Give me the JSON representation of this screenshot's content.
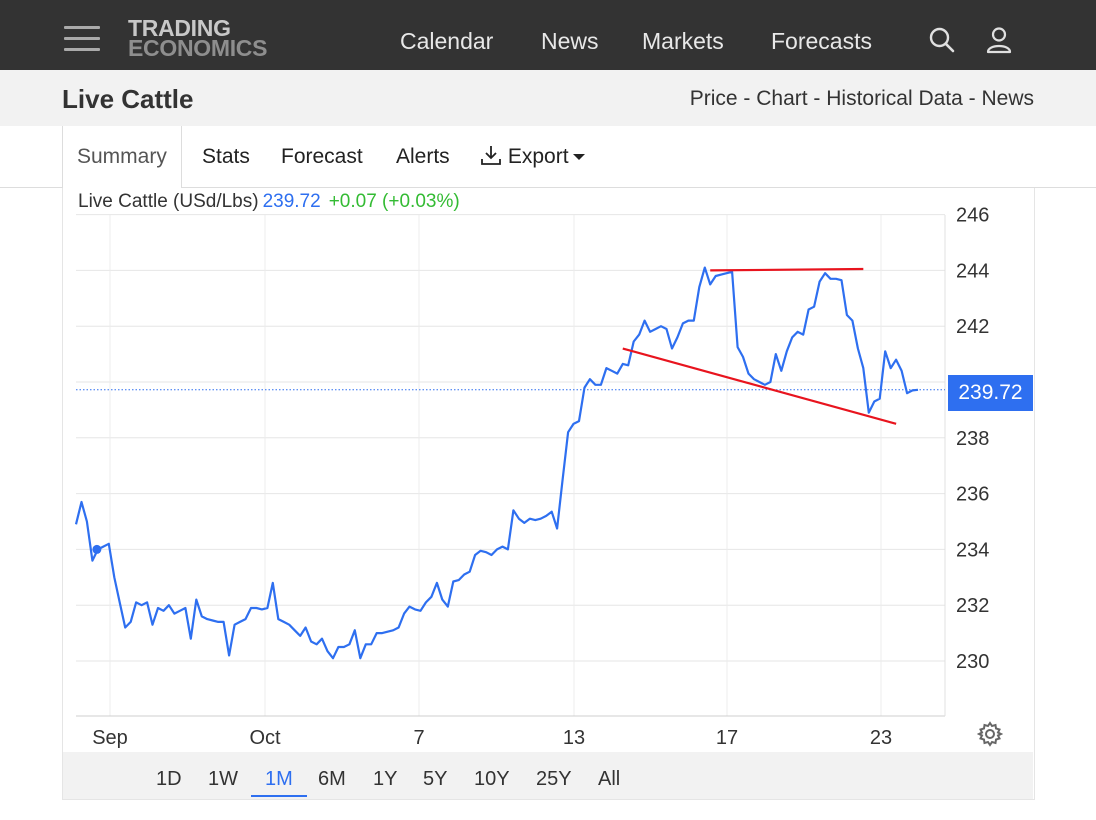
{
  "nav": {
    "logo_top": "TRADING",
    "logo_bottom": "ECONOMICS",
    "links": [
      "Calendar",
      "News",
      "Markets",
      "Forecasts"
    ]
  },
  "title": {
    "page_title": "Live Cattle",
    "crumb_price": "Price",
    "crumb_chart": "Chart",
    "crumb_historical": "Historical Data",
    "crumb_news": "News",
    "sep": " - "
  },
  "tabs": {
    "summary": "Summary",
    "stats": "Stats",
    "forecast": "Forecast",
    "alerts": "Alerts",
    "export": "Export"
  },
  "legend": {
    "name": "Live Cattle (USd/Lbs)",
    "price": "239.72",
    "change": "+0.07 (+0.03%)"
  },
  "price_tag": "239.72",
  "ranges": [
    "1D",
    "1W",
    "1M",
    "6M",
    "1Y",
    "5Y",
    "10Y",
    "25Y",
    "All"
  ],
  "active_range": "1M",
  "colors": {
    "line": "#2e6ff0",
    "trendline": "#e8141e",
    "change_positive": "#33bb33",
    "nav_bg": "#333333"
  },
  "chart_data": {
    "type": "line",
    "ylim": [
      228,
      247
    ],
    "y_ticks": [
      230,
      232,
      234,
      236,
      238,
      240,
      242,
      244,
      246
    ],
    "y_tick_labels": [
      "230",
      "232",
      "234",
      "236",
      "238",
      "",
      "242",
      "244",
      "246"
    ],
    "x_tick_labels": [
      "Sep",
      "Oct",
      "7",
      "13",
      "17",
      "23"
    ],
    "last_value": 239.72,
    "series": [
      {
        "values": [
          234.9,
          235.7,
          235.0,
          233.6,
          234.0,
          234.1,
          234.2,
          233.0,
          232.1,
          231.2,
          231.4,
          232.1,
          232.0,
          232.1,
          231.3,
          231.9,
          231.8,
          232.0,
          231.7,
          231.8,
          231.9,
          230.8,
          232.2,
          231.6,
          231.5,
          231.45,
          231.4,
          231.4,
          230.2,
          231.3,
          231.4,
          231.5,
          231.9,
          231.9,
          231.85,
          231.9,
          232.8,
          231.5,
          231.4,
          231.3,
          231.1,
          230.9,
          231.2,
          230.7,
          230.6,
          230.8,
          230.35,
          230.1,
          230.5,
          230.5,
          230.6,
          231.1,
          230.1,
          230.6,
          230.6,
          231.0,
          231.0,
          231.05,
          231.1,
          231.2,
          231.7,
          231.95,
          231.85,
          231.8,
          232.1,
          232.3,
          232.8,
          232.2,
          231.95,
          232.85,
          232.9,
          233.1,
          233.2,
          233.8,
          233.95,
          233.9,
          233.8,
          234.0,
          234.1,
          234.0,
          235.4,
          235.1,
          234.95,
          235.1,
          235.05,
          235.1,
          235.2,
          235.35,
          234.75,
          236.5,
          238.2,
          238.5,
          238.6,
          239.8,
          240.1,
          239.9,
          239.9,
          240.5,
          240.4,
          240.3,
          240.65,
          240.6,
          241.45,
          241.7,
          242.2,
          241.8,
          241.9,
          242.0,
          241.9,
          241.2,
          241.6,
          242.1,
          242.2,
          242.2,
          243.4,
          244.1,
          243.5,
          243.8,
          243.85,
          243.9,
          243.95,
          241.25,
          240.9,
          240.3,
          240.1,
          240.0,
          239.9,
          240.0,
          241.0,
          240.4,
          241.1,
          241.6,
          241.8,
          241.7,
          242.6,
          242.7,
          243.6,
          243.9,
          243.7,
          243.7,
          243.65,
          242.4,
          242.2,
          241.2,
          240.5,
          238.9,
          239.3,
          239.4,
          241.1,
          240.5,
          240.8,
          240.4,
          239.6,
          239.7,
          239.72
        ]
      }
    ],
    "trendlines": [
      {
        "from": [
          116,
          244.0
        ],
        "to": [
          144,
          244.05
        ]
      },
      {
        "from": [
          100,
          241.2
        ],
        "to": [
          150,
          238.5
        ]
      }
    ]
  }
}
